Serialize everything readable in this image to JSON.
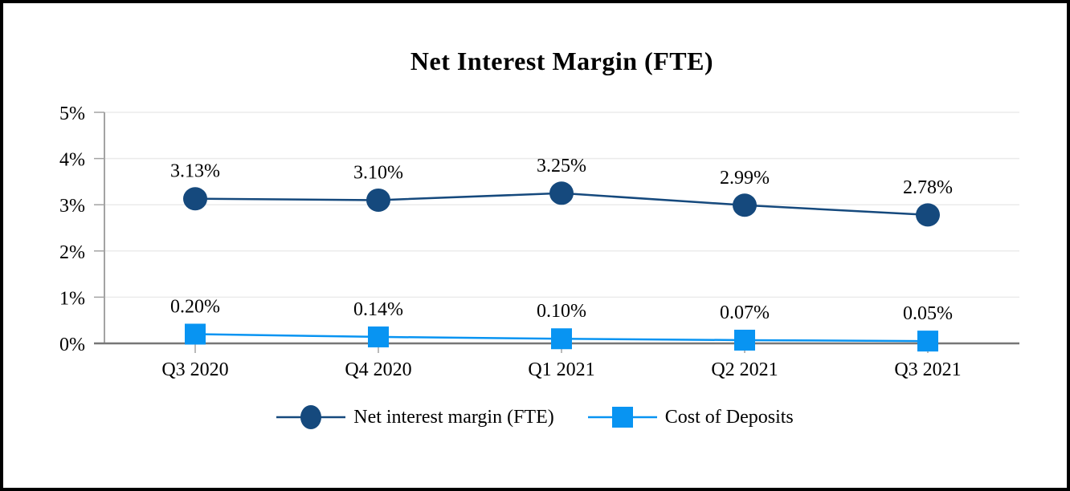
{
  "chart_data": {
    "type": "line",
    "title": "Net Interest Margin (FTE)",
    "categories": [
      "Q3 2020",
      "Q4 2020",
      "Q1 2021",
      "Q2 2021",
      "Q3 2021"
    ],
    "series": [
      {
        "name": "Net interest margin (FTE)",
        "marker": "circle",
        "color": "#15497D",
        "values": [
          3.13,
          3.1,
          3.25,
          2.99,
          2.78
        ],
        "labels": [
          "3.13%",
          "3.10%",
          "3.25%",
          "2.99%",
          "2.78%"
        ]
      },
      {
        "name": "Cost of Deposits",
        "marker": "square",
        "color": "#0894F2",
        "values": [
          0.2,
          0.14,
          0.1,
          0.07,
          0.05
        ],
        "labels": [
          "0.20%",
          "0.14%",
          "0.10%",
          "0.07%",
          "0.05%"
        ]
      }
    ],
    "y_axis": {
      "min": 0,
      "max": 5,
      "step": 1,
      "tick_labels": [
        "0%",
        "1%",
        "2%",
        "3%",
        "4%",
        "5%"
      ]
    },
    "grid": true,
    "legend_position": "bottom",
    "colors": {
      "gridline": "#EBEBEB",
      "y_axis_line": "#A3A3A3",
      "x_axis_line": "#767676",
      "tick": "#A3A3A3",
      "text": "#000000",
      "frame_border": "#000000",
      "background": "#FFFFFF"
    }
  }
}
